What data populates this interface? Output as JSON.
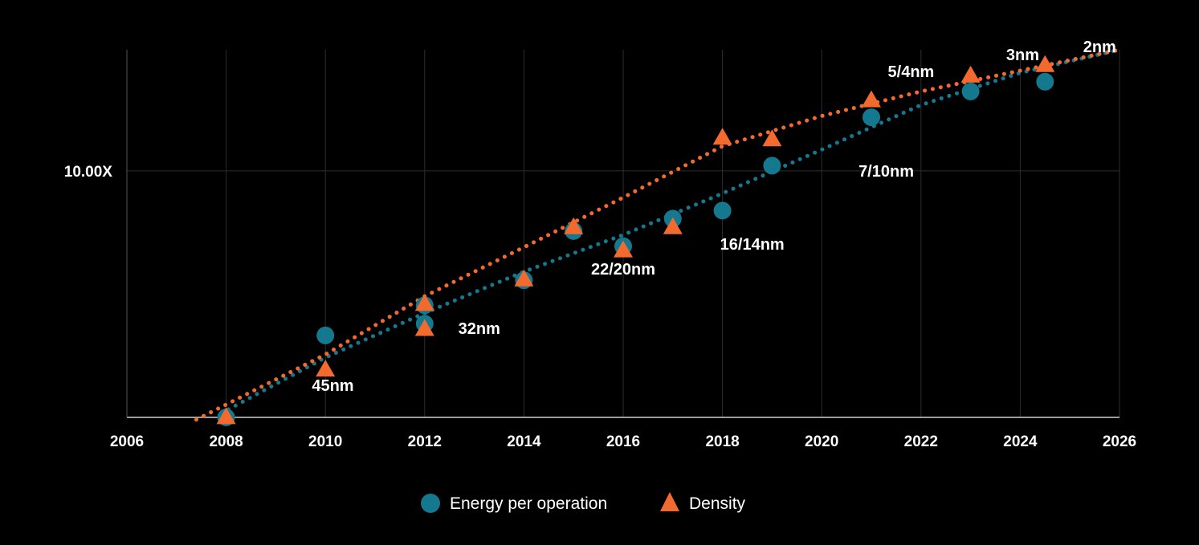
{
  "chart_data": {
    "type": "scatter",
    "title": "",
    "xlabel": "",
    "ylabel": "",
    "xlim": [
      2006,
      2026
    ],
    "x_ticks": [
      "2006",
      "2008",
      "2010",
      "2012",
      "2014",
      "2016",
      "2018",
      "2020",
      "2022",
      "2024",
      "2026"
    ],
    "y_scale": "log",
    "ylim": [
      1,
      31
    ],
    "y_tick_labels": [
      {
        "value": 10,
        "label": "10.00X"
      }
    ],
    "grid": true,
    "legend_position": "bottom-center",
    "colors": {
      "energy": "#14788f",
      "density": "#f26a2e",
      "grid": "#2e2e2e",
      "axis": "#cfcfcf"
    },
    "series": [
      {
        "name": "Energy per operation",
        "marker": "circle",
        "points": [
          {
            "x": 2008,
            "y": 1.0
          },
          {
            "x": 2010,
            "y": 2.15
          },
          {
            "x": 2012,
            "y": 2.4
          },
          {
            "x": 2012,
            "y": 2.85
          },
          {
            "x": 2014,
            "y": 3.6
          },
          {
            "x": 2015,
            "y": 5.7
          },
          {
            "x": 2016,
            "y": 4.95
          },
          {
            "x": 2017,
            "y": 6.4
          },
          {
            "x": 2018,
            "y": 6.9
          },
          {
            "x": 2019,
            "y": 10.5
          },
          {
            "x": 2021,
            "y": 16.5
          },
          {
            "x": 2023,
            "y": 21.0
          },
          {
            "x": 2024.5,
            "y": 23.0
          }
        ]
      },
      {
        "name": "Density",
        "marker": "triangle",
        "points": [
          {
            "x": 2008,
            "y": 1.0
          },
          {
            "x": 2010,
            "y": 1.56
          },
          {
            "x": 2012,
            "y": 2.28
          },
          {
            "x": 2012,
            "y": 2.88
          },
          {
            "x": 2014,
            "y": 3.62
          },
          {
            "x": 2015,
            "y": 5.9
          },
          {
            "x": 2016,
            "y": 4.75
          },
          {
            "x": 2017,
            "y": 5.9
          },
          {
            "x": 2018,
            "y": 13.6
          },
          {
            "x": 2019,
            "y": 13.4
          },
          {
            "x": 2021,
            "y": 19.3
          },
          {
            "x": 2023,
            "y": 24.3
          },
          {
            "x": 2024.5,
            "y": 26.8
          }
        ]
      }
    ],
    "trendlines": [
      {
        "series": "Energy per operation",
        "style": "dotted",
        "points": [
          [
            2007.9,
            1.04
          ],
          [
            2010,
            1.75
          ],
          [
            2012,
            2.65
          ],
          [
            2014,
            3.9
          ],
          [
            2016,
            5.5
          ],
          [
            2018,
            8.1
          ],
          [
            2020,
            12.2
          ],
          [
            2022,
            18.5
          ],
          [
            2024,
            25.0
          ],
          [
            2026,
            31.0
          ]
        ]
      },
      {
        "series": "Density",
        "style": "dotted",
        "points": [
          [
            2007.4,
            0.98
          ],
          [
            2010,
            1.8
          ],
          [
            2012,
            3.1
          ],
          [
            2014,
            4.9
          ],
          [
            2016,
            7.8
          ],
          [
            2018,
            12.6
          ],
          [
            2020,
            16.7
          ],
          [
            2022,
            21.0
          ],
          [
            2024,
            25.5
          ],
          [
            2026,
            31.0
          ]
        ]
      }
    ],
    "annotations": [
      {
        "text": "45nm",
        "x": 2010.15,
        "y": 1.35
      },
      {
        "text": "32nm",
        "x": 2013.1,
        "y": 2.3
      },
      {
        "text": "22/20nm",
        "x": 2016.0,
        "y": 4.0
      },
      {
        "text": "16/14nm",
        "x": 2018.6,
        "y": 5.05
      },
      {
        "text": "7/10nm",
        "x": 2021.3,
        "y": 10.0
      },
      {
        "text": "5/4nm",
        "x": 2021.8,
        "y": 25.3
      },
      {
        "text": "3nm",
        "x": 2024.05,
        "y": 29.6
      },
      {
        "text": "2nm",
        "x": 2025.6,
        "y": 31.9
      }
    ]
  }
}
